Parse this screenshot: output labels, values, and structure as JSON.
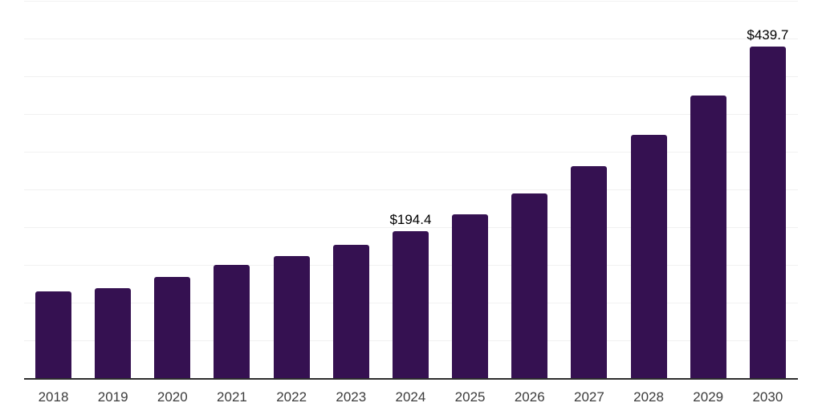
{
  "chart_data": {
    "type": "bar",
    "title": "",
    "xlabel": "",
    "ylabel": "",
    "categories": [
      "2018",
      "2019",
      "2020",
      "2021",
      "2022",
      "2023",
      "2024",
      "2025",
      "2026",
      "2027",
      "2028",
      "2029",
      "2030"
    ],
    "values": [
      114.8,
      119.7,
      133.9,
      149.8,
      161.5,
      176.4,
      194.4,
      216.7,
      244.3,
      280.5,
      321.9,
      375.0,
      439.7
    ],
    "data_labels": [
      "",
      "",
      "",
      "",
      "",
      "",
      "$194.4",
      "",
      "",
      "",
      "",
      "",
      "$439.7"
    ],
    "ylim": [
      0,
      500
    ],
    "gridline_step": 50,
    "grid": "horizontal gridlines only, no y-axis tick labels",
    "legend_position": "none",
    "value_unit_prefix": "$"
  },
  "style": {
    "bar_color": "#351151",
    "axis_line_color": "#2e2e2e",
    "gridline_color": "#f1f1f1",
    "tick_label_color": "#3c3c3c",
    "data_label_color": "#000000",
    "background": "#ffffff"
  }
}
